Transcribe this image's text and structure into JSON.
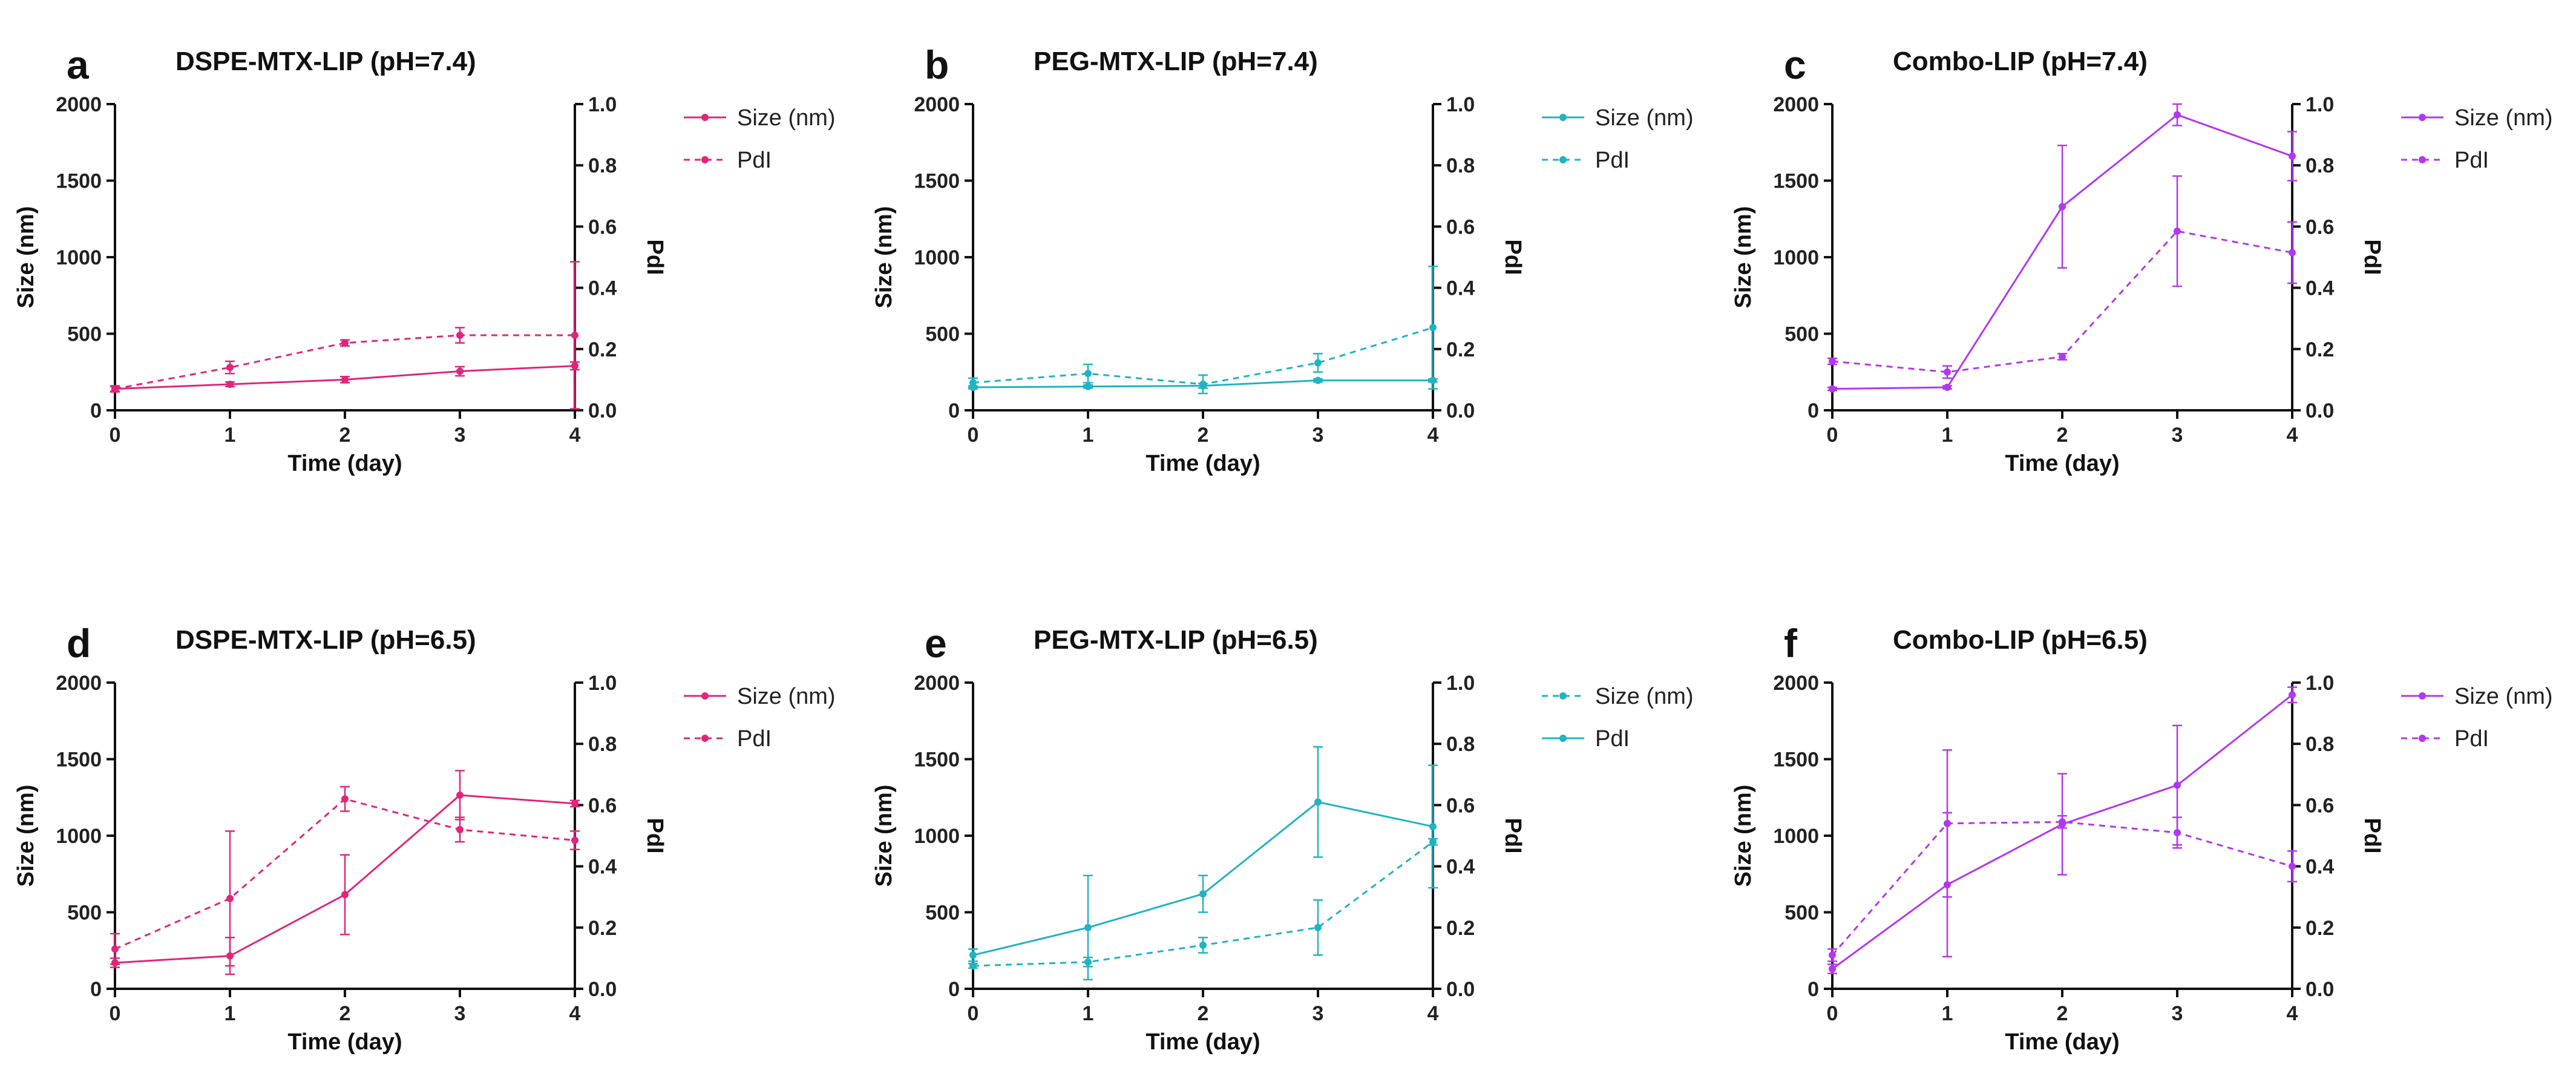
{
  "chart_data": [
    {
      "type": "line",
      "panel": "a",
      "title": "DSPE-MTX-LIP (pH=7.4)",
      "color": "#e0257a",
      "xlabel": "Time (day)",
      "ylabel": "Size (nm)",
      "y2label": "PdI",
      "x": [
        0,
        1,
        2,
        3,
        4
      ],
      "xticks": [
        "0",
        "1",
        "2",
        "3",
        "4"
      ],
      "ylim": [
        0,
        2000
      ],
      "yticks": [
        "0",
        "500",
        "1000",
        "1500",
        "2000"
      ],
      "y2lim": [
        0,
        1.0
      ],
      "y2ticks": [
        "0.0",
        "0.2",
        "0.4",
        "0.6",
        "0.8",
        "1.0"
      ],
      "series": [
        {
          "name": "Size (nm)",
          "axis": "left",
          "style": "solid",
          "values": [
            140,
            170,
            200,
            255,
            290
          ],
          "errors": [
            15,
            15,
            20,
            30,
            25
          ]
        },
        {
          "name": "PdI",
          "axis": "right",
          "style": "dashed",
          "values": [
            0.07,
            0.14,
            0.22,
            0.245,
            0.245
          ],
          "errors": [
            0.01,
            0.02,
            0.01,
            0.025,
            0.24
          ]
        }
      ]
    },
    {
      "type": "line",
      "panel": "b",
      "title": "PEG-MTX-LIP (pH=7.4)",
      "color": "#1fb3c3",
      "xlabel": "Time (day)",
      "ylabel": "Size (nm)",
      "y2label": "PdI",
      "x": [
        0,
        1,
        2,
        3,
        4
      ],
      "xticks": [
        "0",
        "1",
        "2",
        "3",
        "4"
      ],
      "ylim": [
        0,
        2000
      ],
      "yticks": [
        "0",
        "500",
        "1000",
        "1500",
        "2000"
      ],
      "y2lim": [
        0,
        1.0
      ],
      "y2ticks": [
        "0.0",
        "0.2",
        "0.4",
        "0.6",
        "0.8",
        "1.0"
      ],
      "series": [
        {
          "name": "Size (nm)",
          "axis": "left",
          "style": "solid",
          "values": [
            150,
            155,
            160,
            195,
            195
          ],
          "errors": [
            10,
            10,
            15,
            10,
            10
          ]
        },
        {
          "name": "PdI",
          "axis": "right",
          "style": "dashed",
          "values": [
            0.09,
            0.12,
            0.085,
            0.155,
            0.27
          ],
          "errors": [
            0.015,
            0.03,
            0.03,
            0.03,
            0.2
          ]
        }
      ]
    },
    {
      "type": "line",
      "panel": "c",
      "title": "Combo-LIP  (pH=7.4)",
      "color": "#b336f0",
      "xlabel": "Time (day)",
      "ylabel": "Size (nm)",
      "y2label": "PdI",
      "x": [
        0,
        1,
        2,
        3,
        4
      ],
      "xticks": [
        "0",
        "1",
        "2",
        "3",
        "4"
      ],
      "ylim": [
        0,
        2000
      ],
      "yticks": [
        "0",
        "500",
        "1000",
        "1500",
        "2000"
      ],
      "y2lim": [
        0,
        1.0
      ],
      "y2ticks": [
        "0.0",
        "0.2",
        "0.4",
        "0.6",
        "0.8",
        "1.0"
      ],
      "series": [
        {
          "name": "Size (nm)",
          "axis": "left",
          "style": "solid",
          "values": [
            140,
            150,
            1330,
            1930,
            1660
          ],
          "errors": [
            10,
            10,
            400,
            70,
            160
          ]
        },
        {
          "name": "PdI",
          "axis": "right",
          "style": "dashed",
          "values": [
            0.16,
            0.125,
            0.175,
            0.585,
            0.515
          ],
          "errors": [
            0.01,
            0.02,
            0.01,
            0.18,
            0.1
          ]
        }
      ]
    },
    {
      "type": "line",
      "panel": "d",
      "title": "DSPE-MTX-LIP (pH=6.5)",
      "color": "#e0257a",
      "xlabel": "Time (day)",
      "ylabel": "Size (nm)",
      "y2label": "PdI",
      "x": [
        0,
        1,
        2,
        3,
        4
      ],
      "xticks": [
        "0",
        "1",
        "2",
        "3",
        "4"
      ],
      "ylim": [
        0,
        2000
      ],
      "yticks": [
        "0",
        "500",
        "1000",
        "1500",
        "2000"
      ],
      "y2lim": [
        0,
        1.0
      ],
      "y2ticks": [
        "0.0",
        "0.2",
        "0.4",
        "0.6",
        "0.8",
        "1.0"
      ],
      "series": [
        {
          "name": "Size (nm)",
          "axis": "left",
          "style": "solid",
          "values": [
            170,
            215,
            615,
            1265,
            1210
          ],
          "errors": [
            30,
            120,
            260,
            160,
            20
          ]
        },
        {
          "name": "PdI",
          "axis": "right",
          "style": "dashed",
          "values": [
            0.13,
            0.295,
            0.62,
            0.52,
            0.485
          ],
          "errors": [
            0.05,
            0.22,
            0.04,
            0.04,
            0.03
          ]
        }
      ]
    },
    {
      "type": "line",
      "panel": "e",
      "title": "PEG-MTX-LIP (pH=6.5)",
      "color": "#1fb3c3",
      "xlabel": "Time (day)",
      "ylabel": "Size (nm)",
      "y2label": "PdI",
      "x": [
        0,
        1,
        2,
        3,
        4
      ],
      "xticks": [
        "0",
        "1",
        "2",
        "3",
        "4"
      ],
      "ylim": [
        0,
        2000
      ],
      "yticks": [
        "0",
        "500",
        "1000",
        "1500",
        "2000"
      ],
      "y2lim": [
        0,
        1.0
      ],
      "y2ticks": [
        "0.0",
        "0.2",
        "0.4",
        "0.6",
        "0.8",
        "1.0"
      ],
      "series": [
        {
          "name": "Size (nm)",
          "axis": "left",
          "style": "dashed",
          "values": [
            150,
            175,
            285,
            400,
            960
          ],
          "errors": [
            15,
            30,
            50,
            180,
            20
          ]
        },
        {
          "name": "PdI",
          "axis": "right",
          "style": "solid",
          "values": [
            0.11,
            0.2,
            0.31,
            0.61,
            0.53
          ],
          "errors": [
            0.02,
            0.17,
            0.06,
            0.18,
            0.2
          ]
        }
      ]
    },
    {
      "type": "line",
      "panel": "f",
      "title": "Combo-LIP (pH=6.5)",
      "color": "#b336f0",
      "xlabel": "Time (day)",
      "ylabel": "Size (nm)",
      "y2label": "PdI",
      "x": [
        0,
        1,
        2,
        3,
        4
      ],
      "xticks": [
        "0",
        "1",
        "2",
        "3",
        "4"
      ],
      "ylim": [
        0,
        2000
      ],
      "yticks": [
        "0",
        "500",
        "1000",
        "1500",
        "2000"
      ],
      "y2lim": [
        0,
        1.0
      ],
      "y2ticks": [
        "0.0",
        "0.2",
        "0.4",
        "0.6",
        "0.8",
        "1.0"
      ],
      "series": [
        {
          "name": "Size (nm)",
          "axis": "left",
          "style": "solid",
          "values": [
            130,
            680,
            1075,
            1330,
            1920
          ],
          "errors": [
            30,
            470,
            330,
            390,
            50
          ]
        },
        {
          "name": "PdI",
          "axis": "right",
          "style": "dashed",
          "values": [
            0.11,
            0.54,
            0.545,
            0.51,
            0.4
          ],
          "errors": [
            0.02,
            0.24,
            0.02,
            0.05,
            0.05
          ]
        }
      ]
    }
  ]
}
